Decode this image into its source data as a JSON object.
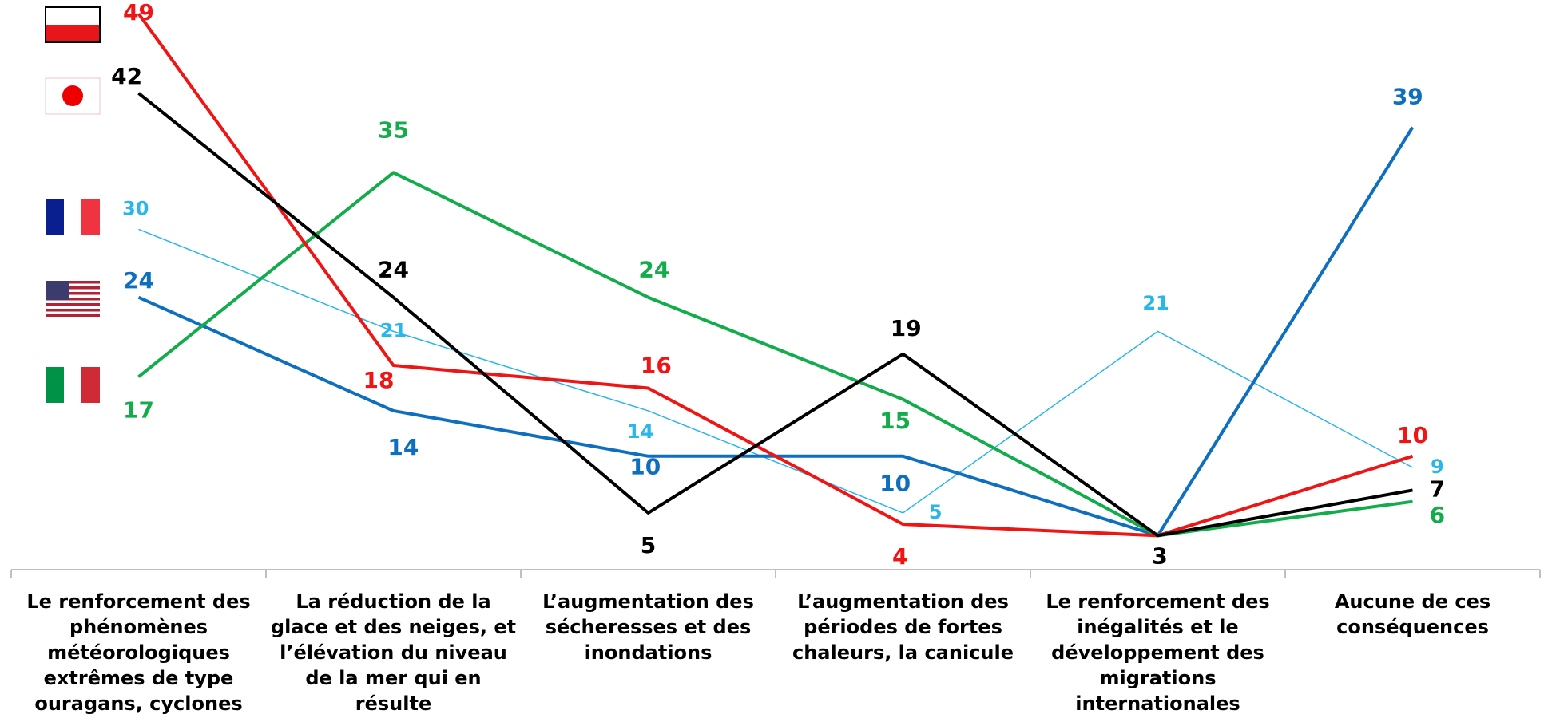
{
  "chart_data": {
    "type": "line",
    "categories": [
      "Le renforcement des phénomènes météorologiques extrêmes de type ouragans, cyclones",
      "La réduction de la glace et des neiges, et l’élévation du niveau de la mer qui en résulte",
      "L’augmentation des sécheresses et des inondations",
      "L’augmentation des périodes de fortes chaleurs, la canicule",
      "Le renforcement des inégalités et le développement des migrations internationales",
      "Aucune de ces conséquences"
    ],
    "series": [
      {
        "color": "#29b6ea",
        "values": [
          30,
          21,
          14,
          5,
          21,
          9
        ]
      },
      {
        "color": "#0f6fbf",
        "values": [
          24,
          14,
          10,
          10,
          3,
          39
        ]
      },
      {
        "color": "#12ac4b",
        "values": [
          17,
          35,
          24,
          15,
          3,
          6
        ]
      },
      {
        "color": "#f01515",
        "values": [
          49,
          18,
          16,
          4,
          3,
          10
        ]
      },
      {
        "color": "#000000",
        "values": [
          42,
          24,
          5,
          19,
          3,
          7
        ]
      }
    ],
    "ylim": [
      0,
      50
    ]
  }
}
